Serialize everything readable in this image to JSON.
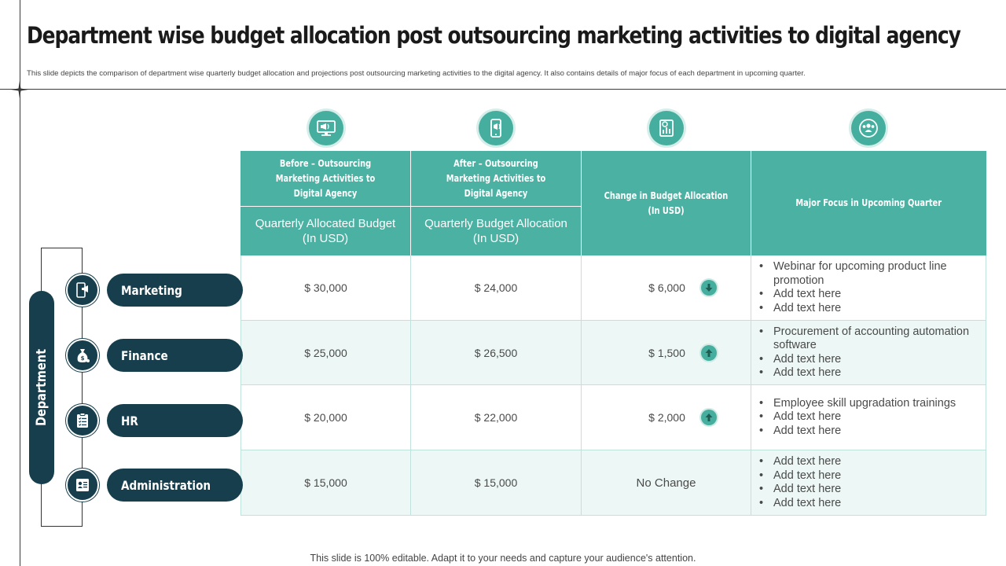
{
  "title": "Department wise budget allocation post outsourcing marketing activities to digital agency",
  "subtitle": "This slide depicts the comparison of  department  wise quarterly budget allocation and projections post outsourcing marketing  activities to the digital agency. It also contains details of major  focus of each department in  upcoming quarter.",
  "table": {
    "headers": {
      "before": "Before – Outsourcing Marketing Activities to Digital Agency",
      "after": "After – Outsourcing Marketing Activities to Digital Agency",
      "change": "Change in Budget Allocation (In USD)",
      "focus": "Major Focus in Upcoming Quarter",
      "before_sub": "Quarterly Allocated Budget (In USD)",
      "after_sub": "Quarterly Budget Allocation (In USD)"
    },
    "header_icons": [
      "monitor-megaphone-icon",
      "mobile-megaphone-icon",
      "report-magnifier-icon",
      "team-circle-icon"
    ],
    "rows": [
      {
        "department": "Marketing",
        "icon": "mobile-megaphone-icon",
        "before": "$ 30,000",
        "after": "$ 24,000",
        "change": "$ 6,000",
        "direction": "down",
        "focus": [
          "Webinar for upcoming product line promotion",
          "Add text here",
          "Add text here"
        ]
      },
      {
        "department": "Finance",
        "icon": "money-bag-icon",
        "before": "$ 25,000",
        "after": "$ 26,500",
        "change": "$ 1,500",
        "direction": "up",
        "focus": [
          "Procurement of accounting automation software",
          "Add text here",
          "Add text here"
        ]
      },
      {
        "department": "HR",
        "icon": "clipboard-checklist-icon",
        "before": "$ 20,000",
        "after": "$ 22,000",
        "change": "$ 2,000",
        "direction": "up",
        "focus": [
          "Employee skill upgradation trainings",
          "Add text here",
          "Add text here"
        ]
      },
      {
        "department": "Administration",
        "icon": "id-card-icon",
        "before": "$ 15,000",
        "after": "$ 15,000",
        "change": "No Change",
        "direction": "none",
        "focus": [
          "Add text here",
          "Add text here",
          "Add text here",
          "Add text here"
        ]
      }
    ]
  },
  "side": {
    "label": "Department"
  },
  "footer": "This slide is 100% editable. Adapt it to your needs and capture your audience's attention.",
  "colors": {
    "teal": "#4bb1a2",
    "navy": "#163e4c",
    "row_alt": "#edf7f5"
  }
}
